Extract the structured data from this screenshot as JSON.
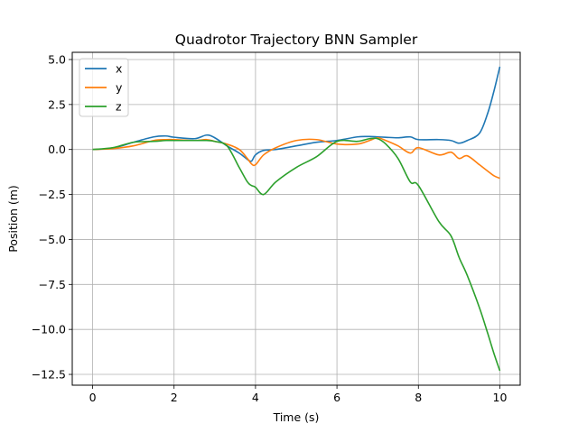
{
  "chart_data": {
    "type": "line",
    "title": "Quadrotor Trajectory BNN Sampler",
    "xlabel": "Time (s)",
    "ylabel": "Position (m)",
    "xlim": [
      -0.5,
      10.5
    ],
    "ylim": [
      -13.1,
      5.4
    ],
    "xticks": [
      0,
      2,
      4,
      6,
      8,
      10
    ],
    "xtick_labels": [
      "0",
      "2",
      "4",
      "6",
      "8",
      "10"
    ],
    "yticks": [
      5.0,
      2.5,
      0.0,
      -2.5,
      -5.0,
      -7.5,
      -10.0,
      -12.5
    ],
    "ytick_labels": [
      "5.0",
      "2.5",
      "0.0",
      "−2.5",
      "−5.0",
      "−7.5",
      "−10.0",
      "−12.5"
    ],
    "grid": true,
    "legend_position": "upper-left",
    "x": [
      0,
      0.5,
      1,
      1.5,
      1.8,
      2,
      2.5,
      2.8,
      3,
      3.3,
      3.6,
      3.8,
      3.9,
      4,
      4.2,
      4.5,
      5,
      5.5,
      6,
      6.5,
      6.8,
      7,
      7.2,
      7.5,
      7.8,
      8,
      8.5,
      8.8,
      9,
      9.2,
      9.5,
      9.7,
      9.85,
      10
    ],
    "series": [
      {
        "name": "x",
        "color": "#1f77b4",
        "values": [
          0,
          0.08,
          0.4,
          0.7,
          0.75,
          0.68,
          0.6,
          0.8,
          0.65,
          0.2,
          -0.2,
          -0.55,
          -0.65,
          -0.3,
          -0.05,
          0,
          0.2,
          0.4,
          0.5,
          0.7,
          0.72,
          0.7,
          0.68,
          0.65,
          0.7,
          0.55,
          0.55,
          0.5,
          0.35,
          0.5,
          0.9,
          2.0,
          3.2,
          4.6
        ]
      },
      {
        "name": "y",
        "color": "#ff7f0e",
        "values": [
          0,
          0.05,
          0.2,
          0.5,
          0.55,
          0.55,
          0.5,
          0.55,
          0.45,
          0.3,
          0,
          -0.5,
          -0.8,
          -0.85,
          -0.3,
          0.1,
          0.5,
          0.55,
          0.3,
          0.3,
          0.5,
          0.65,
          0.5,
          0.2,
          -0.2,
          0.1,
          -0.3,
          -0.15,
          -0.5,
          -0.35,
          -0.85,
          -1.2,
          -1.45,
          -1.6
        ]
      },
      {
        "name": "z",
        "color": "#2ca02c",
        "values": [
          0,
          0.1,
          0.4,
          0.45,
          0.5,
          0.5,
          0.5,
          0.5,
          0.45,
          0.2,
          -1.0,
          -1.8,
          -2.0,
          -2.1,
          -2.5,
          -1.8,
          -1.0,
          -0.4,
          0.45,
          0.45,
          0.6,
          0.6,
          0.3,
          -0.5,
          -1.8,
          -2.0,
          -4.0,
          -4.8,
          -6.0,
          -7.0,
          -8.8,
          -10.2,
          -11.3,
          -12.3
        ]
      }
    ]
  }
}
